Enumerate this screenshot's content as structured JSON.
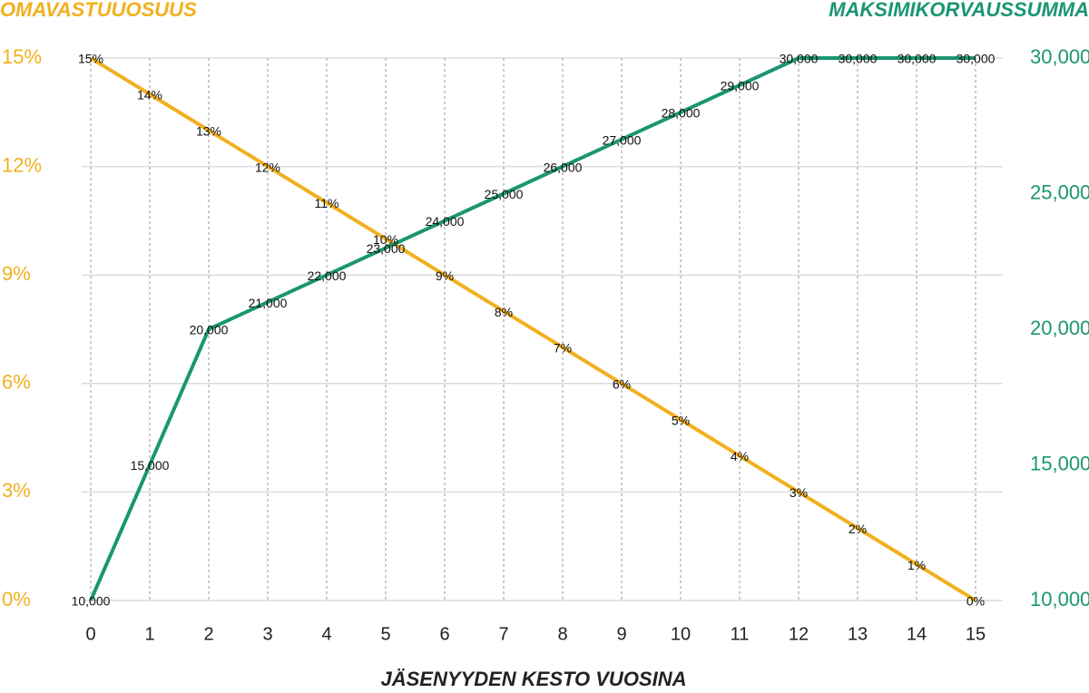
{
  "chart_data": {
    "type": "line",
    "ylabel": "OMAVASTUUOSUUS",
    "y2label": "MAKSIMIKORVAUSSUMMA",
    "xlabel": "JÄSENYYDEN KESTO VUOSINA",
    "x": [
      0,
      1,
      2,
      3,
      4,
      5,
      6,
      7,
      8,
      9,
      10,
      11,
      12,
      13,
      14,
      15
    ],
    "xlim": [
      0,
      15
    ],
    "xticks": [
      0,
      1,
      2,
      3,
      4,
      5,
      6,
      7,
      8,
      9,
      10,
      11,
      12,
      13,
      14,
      15
    ],
    "ylim": [
      0,
      15
    ],
    "yticks": [
      {
        "value": 0,
        "label": "0%"
      },
      {
        "value": 3,
        "label": "3%"
      },
      {
        "value": 6,
        "label": "6%"
      },
      {
        "value": 9,
        "label": "9%"
      },
      {
        "value": 12,
        "label": "12%"
      },
      {
        "value": 15,
        "label": "15%"
      }
    ],
    "y2lim": [
      10000,
      30000
    ],
    "y2ticks": [
      {
        "value": 10000,
        "label": "10,000"
      },
      {
        "value": 15000,
        "label": "15,000"
      },
      {
        "value": 20000,
        "label": "20,000"
      },
      {
        "value": 25000,
        "label": "25,000"
      },
      {
        "value": 30000,
        "label": "30,000"
      }
    ],
    "grid": true,
    "series": [
      {
        "color": "#f2b01e",
        "axis": "y",
        "values": [
          15,
          14,
          13,
          12,
          11,
          10,
          9,
          8,
          7,
          6,
          5,
          4,
          3,
          2,
          1,
          0
        ],
        "value_labels": [
          "15%",
          "14%",
          "13%",
          "12%",
          "11%",
          "10%",
          "9%",
          "8%",
          "7%",
          "6%",
          "5%",
          "4%",
          "3%",
          "2%",
          "1%",
          "0%"
        ]
      },
      {
        "color": "#1a9672",
        "axis": "y2",
        "values": [
          10000,
          15000,
          20000,
          21000,
          22000,
          23000,
          24000,
          25000,
          26000,
          27000,
          28000,
          29000,
          30000,
          30000,
          30000,
          30000
        ],
        "value_labels": [
          "10,000",
          "15,000",
          "20,000",
          "21,000",
          "22,000",
          "23,000",
          "24,000",
          "25,000",
          "26,000",
          "27,000",
          "28,000",
          "29,000",
          "30,000",
          "30,000",
          "30,000",
          "30,000"
        ]
      }
    ]
  }
}
